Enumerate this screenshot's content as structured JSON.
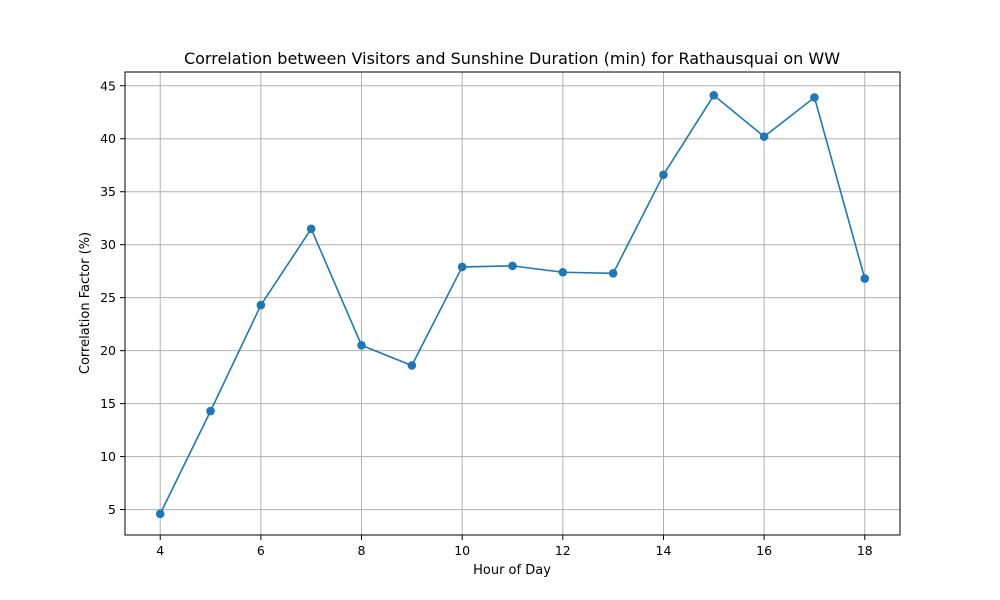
{
  "chart_data": {
    "type": "line",
    "title": "Correlation between Visitors and Sunshine Duration (min) for Rathausquai on WW",
    "xlabel": "Hour of Day",
    "ylabel": "Correlation Factor (%)",
    "xlim": [
      3.3,
      18.7
    ],
    "ylim": [
      2.6,
      46.3
    ],
    "xticks": [
      4,
      6,
      8,
      10,
      12,
      14,
      16,
      18
    ],
    "yticks": [
      5,
      10,
      15,
      20,
      25,
      30,
      35,
      40,
      45
    ],
    "grid": true,
    "series": [
      {
        "color": "#1f77b4",
        "marker": "circle",
        "x": [
          4,
          5,
          6,
          7,
          8,
          9,
          10,
          11,
          12,
          13,
          14,
          15,
          16,
          17,
          18
        ],
        "y": [
          4.6,
          14.3,
          24.3,
          31.5,
          20.5,
          18.6,
          27.9,
          28.0,
          27.4,
          27.3,
          36.6,
          44.1,
          40.2,
          43.9,
          26.8
        ]
      }
    ]
  }
}
